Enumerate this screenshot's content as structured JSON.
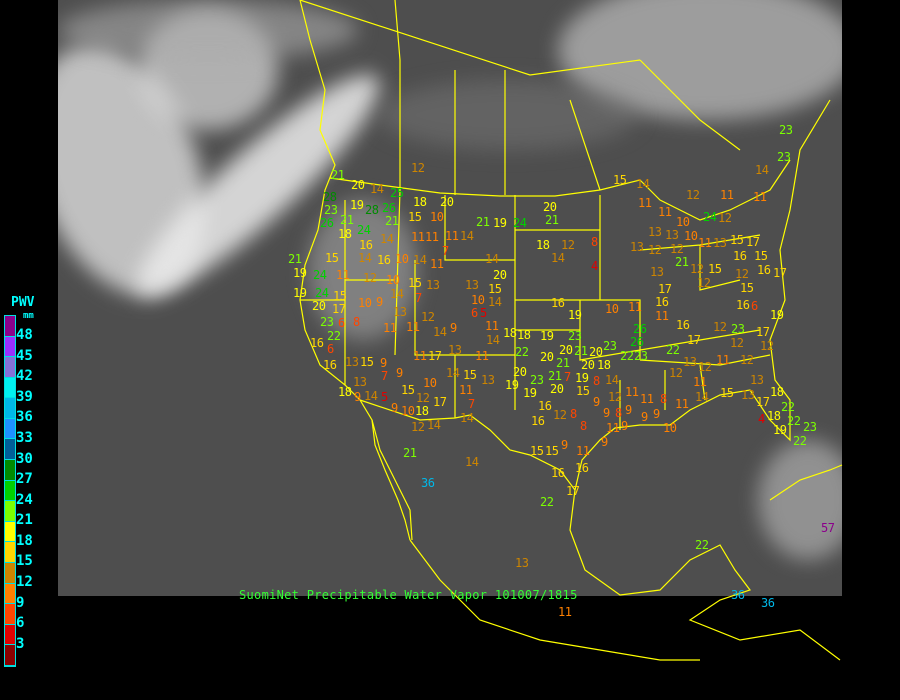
{
  "caption": "SuomiNet Precipitable Water Vapor 101007/1815",
  "legend": {
    "title": "PWV",
    "unit": "mm",
    "labels": [
      "48",
      "45",
      "42",
      "39",
      "36",
      "33",
      "30",
      "27",
      "24",
      "21",
      "18",
      "15",
      "12",
      "9",
      "6",
      "3"
    ],
    "colors": [
      "#8b008b",
      "#9b30ff",
      "#8470d8",
      "#00f0f0",
      "#00b8e8",
      "#1e90ff",
      "#005f99",
      "#008b00",
      "#00d000",
      "#7cff00",
      "#ffff00",
      "#ffd700",
      "#cd8500",
      "#ff8000",
      "#ff4500",
      "#e00000",
      "#8b0000"
    ],
    "bin_width_mm": 3
  },
  "stations": [
    12,
    21,
    20,
    14,
    25,
    28,
    18,
    20,
    19,
    28,
    26,
    23,
    26,
    21,
    24,
    21,
    15,
    10,
    21,
    19,
    24,
    18,
    14,
    11,
    11,
    11,
    14,
    16,
    14,
    7,
    15,
    16,
    10,
    14,
    11,
    14,
    19,
    21,
    24,
    11,
    12,
    10,
    15,
    13,
    20,
    13,
    15,
    10,
    19,
    24,
    15,
    14,
    7,
    20,
    17,
    10,
    9,
    14,
    6,
    5,
    23,
    6,
    8,
    13,
    12,
    11,
    11,
    14,
    9,
    11,
    14,
    18,
    22,
    16,
    6,
    15,
    14,
    12,
    11,
    11,
    11,
    11,
    20,
    21,
    10,
    24,
    12,
    13,
    13,
    10,
    15,
    17,
    18,
    12,
    8,
    13,
    12,
    11,
    13,
    14,
    4,
    12,
    21,
    12,
    15,
    16,
    15,
    16,
    17,
    13,
    12,
    12,
    15,
    17,
    16,
    16,
    10,
    11,
    16,
    6,
    19,
    11,
    19,
    16,
    26,
    12,
    23,
    19,
    23,
    17,
    17,
    26,
    23,
    22,
    23,
    22,
    12,
    12,
    13,
    15,
    16,
    11,
    17,
    13,
    11,
    9,
    7,
    9,
    14,
    15,
    13,
    10,
    11,
    13,
    15,
    18,
    9,
    14,
    5,
    12,
    17,
    7,
    9,
    10,
    18,
    12,
    14,
    14,
    21,
    14,
    36,
    20,
    19,
    23,
    19,
    18,
    22,
    20,
    20,
    21,
    20,
    20,
    21,
    19,
    18,
    8,
    21,
    20,
    15,
    7,
    14,
    13,
    12,
    12,
    11,
    12,
    11,
    13,
    12,
    11,
    11,
    8,
    11,
    14,
    15,
    13,
    17,
    18,
    9,
    16,
    8,
    9,
    8,
    9,
    9,
    9,
    12,
    16,
    18,
    22,
    22,
    23,
    4,
    8,
    11,
    9,
    10,
    19,
    22,
    9,
    15,
    15,
    9,
    11,
    16,
    16,
    17,
    22,
    13,
    11,
    36,
    36,
    57,
    23,
    23,
    14,
    22
  ]
}
